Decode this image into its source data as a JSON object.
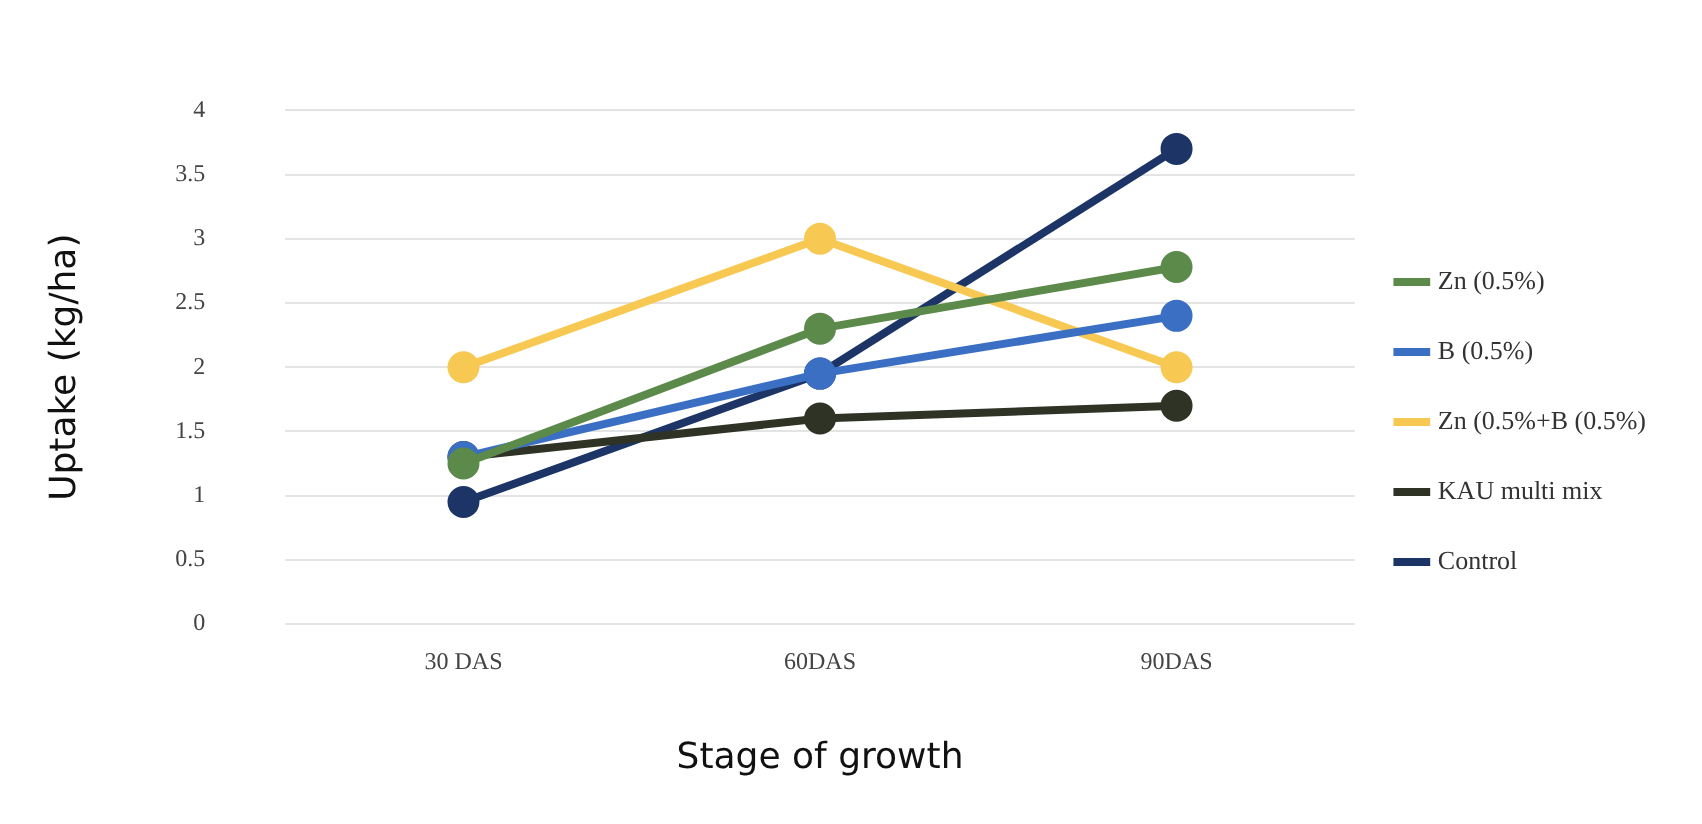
{
  "chart_data": {
    "type": "line",
    "xlabel": "Stage of growth",
    "ylabel": "Uptake (kg/ha)",
    "categories": [
      "30 DAS",
      "60DAS",
      "90DAS"
    ],
    "series": [
      {
        "name": "Zn (0.5%)",
        "color": "#5b8a4a",
        "values": [
          1.25,
          2.3,
          2.78
        ]
      },
      {
        "name": "B (0.5%)",
        "color": "#3a6fc4",
        "values": [
          1.3,
          1.95,
          2.4
        ]
      },
      {
        "name": "Zn (0.5%+B (0.5%)",
        "color": "#f7c852",
        "values": [
          2,
          3,
          2
        ]
      },
      {
        "name": "KAU multi mix",
        "color": "#2e3326",
        "values": [
          1.3,
          1.6,
          1.7
        ]
      },
      {
        "name": "Control",
        "color": "#1c3566",
        "values": [
          0.95,
          1.95,
          3.7
        ]
      }
    ],
    "ylim": [
      0,
      4
    ],
    "yticks": [
      0,
      0.5,
      1,
      1.5,
      2,
      2.5,
      3,
      3.5,
      4
    ],
    "grid": "y",
    "legend": "right",
    "marker": "circle"
  }
}
